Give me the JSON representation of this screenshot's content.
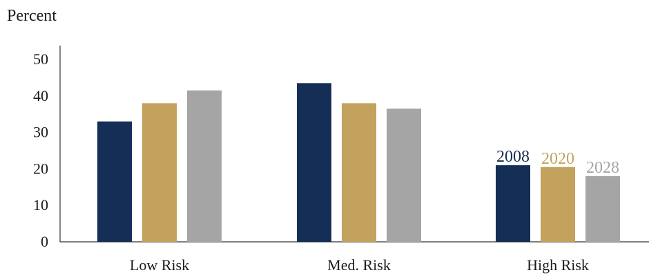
{
  "chart_data": {
    "type": "bar",
    "ylabel": "Percent",
    "ylim": [
      0,
      50
    ],
    "yticks": [
      0,
      10,
      20,
      30,
      40,
      50
    ],
    "categories": [
      "Low Risk",
      "Med. Risk",
      "High Risk"
    ],
    "series": [
      {
        "name": "2008",
        "values": [
          33,
          43.5,
          21
        ],
        "color": "#152e55"
      },
      {
        "name": "2020",
        "values": [
          38,
          38,
          20.5
        ],
        "color": "#c2a25c"
      },
      {
        "name": "2028",
        "values": [
          41.5,
          36.5,
          18
        ],
        "color": "#a5a5a5"
      }
    ],
    "legend": "inline labels above High Risk bars",
    "grid": false
  }
}
